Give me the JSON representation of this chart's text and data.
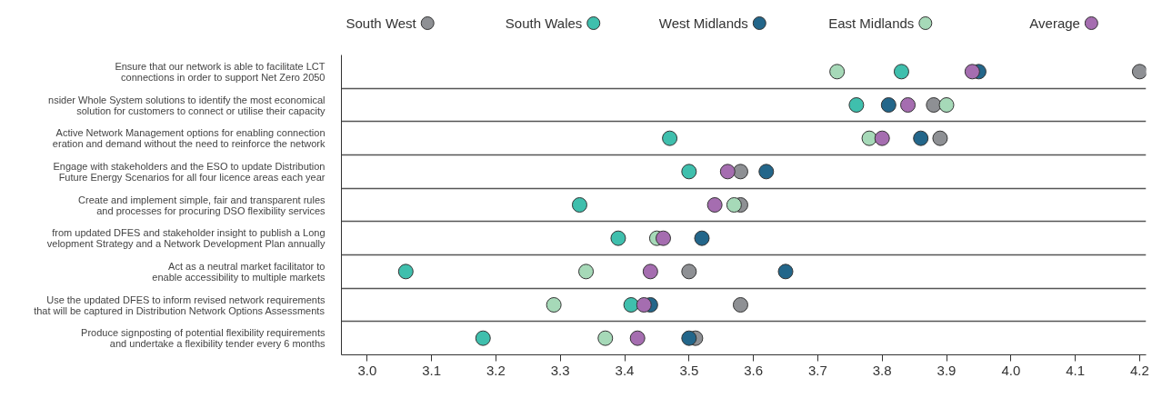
{
  "chart_data": {
    "type": "scatter",
    "categories": [
      "Ensure that our network is able to facilitate LCT\nconnections in order to support Net Zero 2050",
      "nsider Whole System solutions to identify the most economical\nsolution for customers to connect or utilise their capacity",
      "Active Network Management options for enabling connection\neration and demand without the need to reinforce the network",
      "Engage with stakeholders and the ESO to update Distribution\nFuture Energy Scenarios for all four licence areas each year",
      "Create and implement simple, fair and transparent rules\nand processes for procuring DSO flexibility services",
      "from updated DFES and stakeholder insight to publish a Long\nvelopment Strategy and a Network Development Plan annually",
      "Act as a neutral market facilitator to\nenable accessibility to multiple markets",
      "Use the updated DFES to inform revised network requirements\nthat will be captured in Distribution Network Options Assessments",
      "Produce signposting of potential flexibility requirements\nand undertake a flexibility tender every 6 months"
    ],
    "orientation": "horizontal",
    "series": [
      {
        "name": "South West",
        "color": "#8e9094",
        "values": [
          4.2,
          3.88,
          3.89,
          3.58,
          3.58,
          null,
          3.5,
          3.58,
          3.51
        ]
      },
      {
        "name": "South Wales",
        "color": "#3fbfad",
        "values": [
          3.83,
          3.76,
          3.47,
          3.5,
          3.33,
          3.39,
          3.06,
          3.41,
          3.18
        ]
      },
      {
        "name": "West Midlands",
        "color": "#23668a",
        "values": [
          3.95,
          3.81,
          3.86,
          3.62,
          null,
          3.52,
          3.65,
          3.44,
          3.5
        ]
      },
      {
        "name": "East Midlands",
        "color": "#a6d9b8",
        "values": [
          3.73,
          3.9,
          3.78,
          null,
          3.57,
          3.45,
          3.34,
          3.29,
          3.37
        ]
      },
      {
        "name": "Average",
        "color": "#a56db0",
        "values": [
          3.94,
          3.84,
          3.8,
          3.56,
          3.54,
          3.46,
          3.44,
          3.43,
          3.42
        ]
      }
    ],
    "xlim": [
      2.96,
      4.21
    ],
    "xticks": [
      {
        "value": 3,
        "label": "3.0"
      },
      3.1,
      3.2,
      3.3,
      3.4,
      3.5,
      3.6,
      3.7,
      3.8,
      3.9,
      {
        "value": 4,
        "label": "4.0"
      },
      4.1,
      4.2
    ],
    "marker": "circle",
    "grid": "y",
    "legend": "top"
  }
}
